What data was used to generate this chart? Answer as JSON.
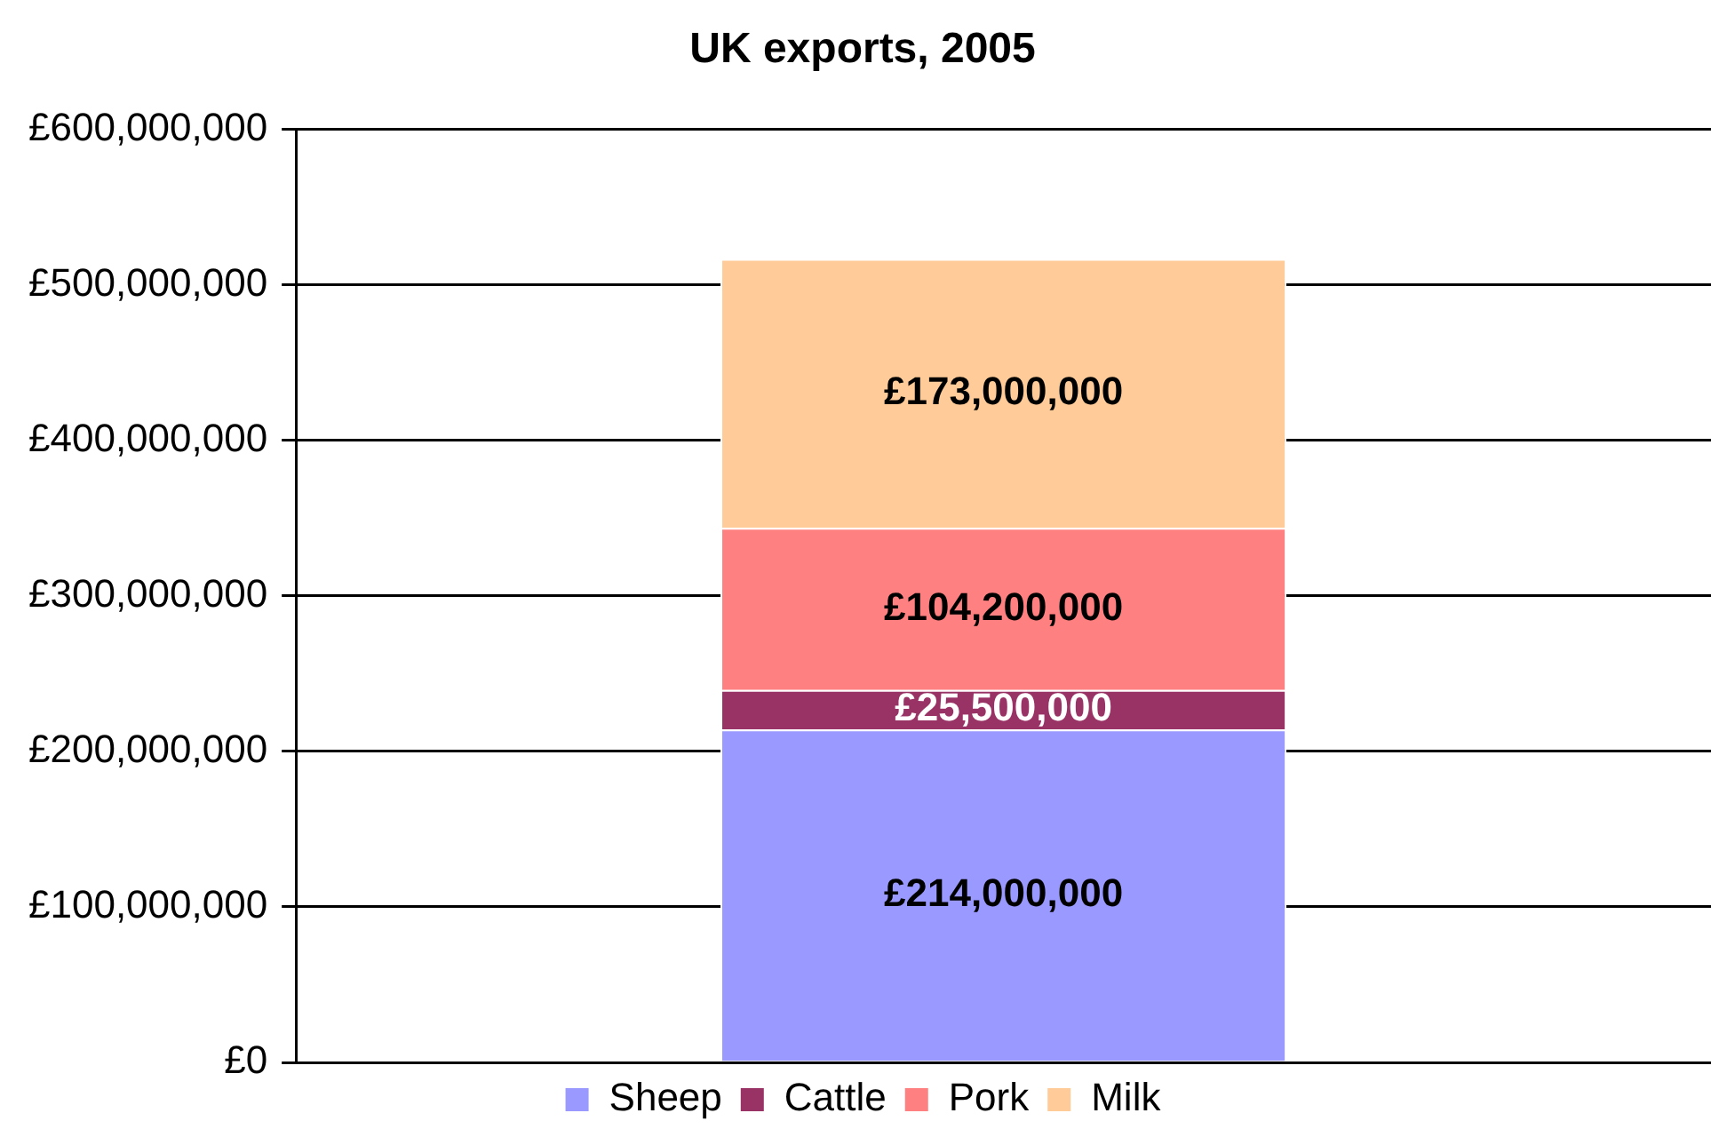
{
  "chart_data": {
    "type": "bar",
    "title": "UK exports, 2005",
    "categories": [
      null
    ],
    "stacked": true,
    "series": [
      {
        "name": "Sheep",
        "color": "#9999ff",
        "values": [
          214000000
        ],
        "value_labels": [
          "£214,000,000"
        ]
      },
      {
        "name": "Cattle",
        "color": "#993366",
        "values": [
          25500000
        ],
        "value_labels": [
          "£25,500,000"
        ]
      },
      {
        "name": "Pork",
        "color": "#ff8080",
        "values": [
          104200000
        ],
        "value_labels": [
          "£104,200,000"
        ]
      },
      {
        "name": "Milk",
        "color": "#ffcc99",
        "values": [
          173000000
        ],
        "value_labels": [
          "£173,000,000"
        ]
      }
    ],
    "ylim": [
      0,
      600000000
    ],
    "yticks": [
      {
        "value": 0,
        "label": "£0"
      },
      {
        "value": 100000000,
        "label": "£100,000,000"
      },
      {
        "value": 200000000,
        "label": "£200,000,000"
      },
      {
        "value": 300000000,
        "label": "£300,000,000"
      },
      {
        "value": 400000000,
        "label": "£400,000,000"
      },
      {
        "value": 500000000,
        "label": "£500,000,000"
      },
      {
        "value": 600000000,
        "label": "£600,000,000"
      }
    ],
    "grid": "y",
    "legend": "bottom",
    "tick_labels": "y"
  }
}
